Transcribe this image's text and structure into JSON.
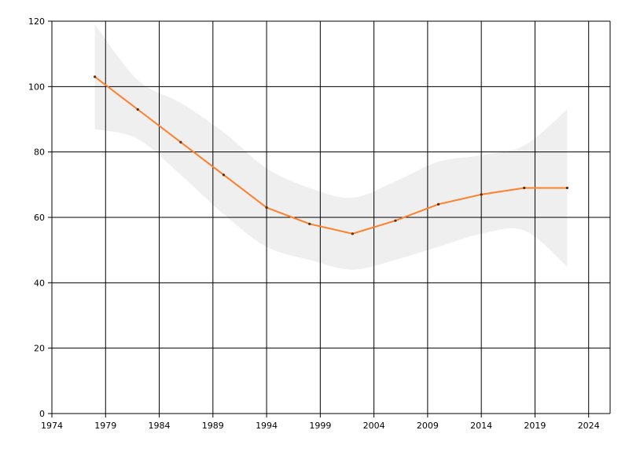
{
  "chart_data": {
    "type": "line",
    "title": "",
    "xlabel": "",
    "ylabel": "",
    "xlim": [
      1974,
      2026
    ],
    "ylim": [
      0,
      120
    ],
    "x_ticks": [
      1974,
      1979,
      1984,
      1989,
      1994,
      1999,
      2004,
      2009,
      2014,
      2019,
      2024
    ],
    "y_ticks": [
      0,
      20,
      40,
      60,
      80,
      100,
      120
    ],
    "grid": true,
    "legend": "none",
    "series": [
      {
        "color": "#ff7f2a",
        "x": [
          1978,
          1982,
          1986,
          1990,
          1994,
          1998,
          2002,
          2006,
          2010,
          2014,
          2018,
          2022
        ],
        "y": [
          103,
          93,
          83,
          73,
          63,
          58,
          55,
          59,
          64,
          67,
          69,
          69
        ]
      }
    ],
    "band": {
      "color": "#efefef",
      "x": [
        1978,
        1982,
        1986,
        1990,
        1994,
        1998,
        2002,
        2006,
        2010,
        2014,
        2018,
        2022
      ],
      "upper": [
        119,
        102,
        95,
        86,
        75,
        69,
        66,
        71,
        77,
        79,
        82,
        93
      ],
      "lower": [
        87,
        84,
        73,
        61,
        51,
        47,
        44,
        47,
        51,
        55,
        56,
        45
      ]
    }
  }
}
